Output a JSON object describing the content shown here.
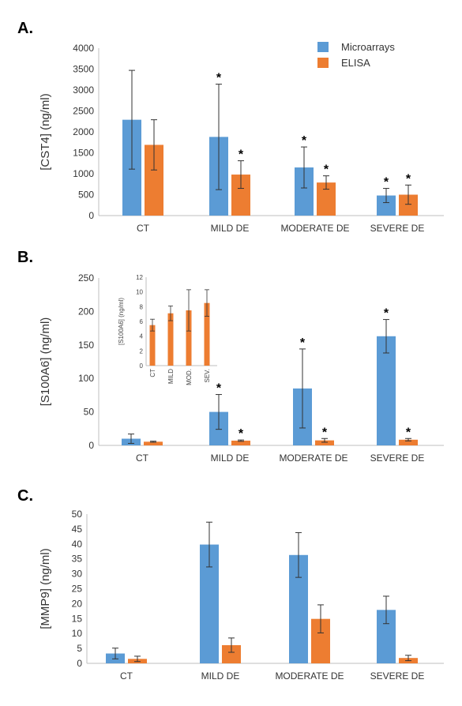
{
  "colors": {
    "microarrays": "#5b9bd5",
    "elisa": "#ed7d31"
  },
  "legend": {
    "microarrays": "Microarrays",
    "elisa": "ELISA"
  },
  "chart_data": [
    {
      "type": "bar",
      "panel": "A.",
      "ylabel": "[CST4] (ng/ml)",
      "ylim": [
        0,
        4000
      ],
      "yticks": [
        0,
        500,
        1000,
        1500,
        2000,
        2500,
        3000,
        3500,
        4000
      ],
      "categories": [
        "CT",
        "MILD DE",
        "MODERATE DE",
        "SEVERE DE"
      ],
      "series": [
        {
          "name": "Microarrays",
          "values": [
            2290,
            1880,
            1150,
            480
          ],
          "errors": [
            1180,
            1260,
            490,
            170
          ],
          "significant": [
            false,
            true,
            true,
            true
          ]
        },
        {
          "name": "ELISA",
          "values": [
            1690,
            980,
            790,
            500
          ],
          "errors": [
            600,
            330,
            160,
            230
          ],
          "significant": [
            false,
            true,
            true,
            true
          ]
        }
      ]
    },
    {
      "type": "bar",
      "panel": "B.",
      "ylabel": "[S100A6] (ng/ml)",
      "ylim": [
        0,
        250
      ],
      "yticks": [
        0,
        50,
        100,
        150,
        200,
        250
      ],
      "categories": [
        "CT",
        "MILD DE",
        "MODERATE DE",
        "SEVERE DE"
      ],
      "series": [
        {
          "name": "Microarrays",
          "values": [
            10,
            50,
            85,
            163
          ],
          "errors": [
            7,
            26,
            59,
            25
          ],
          "significant": [
            false,
            true,
            true,
            true
          ]
        },
        {
          "name": "ELISA",
          "values": [
            5.5,
            7.1,
            7.5,
            8.5
          ],
          "errors": [
            0.8,
            1.0,
            2.8,
            1.8
          ],
          "significant": [
            false,
            true,
            true,
            true
          ]
        }
      ],
      "inset": {
        "ylabel": "[S100A6] (ng/ml)",
        "ylim": [
          0,
          12
        ],
        "yticks": [
          0,
          2,
          4,
          6,
          8,
          10,
          12
        ],
        "categories": [
          "CT",
          "MILD",
          "MOD.",
          "SEV."
        ],
        "values": [
          5.5,
          7.1,
          7.5,
          8.5
        ],
        "errors": [
          0.8,
          1.0,
          2.8,
          1.8
        ]
      }
    },
    {
      "type": "bar",
      "panel": "C.",
      "ylabel": "[MMP9] (ng/ml)",
      "ylim": [
        0,
        50
      ],
      "yticks": [
        0,
        5,
        10,
        15,
        20,
        25,
        30,
        35,
        40,
        45,
        50
      ],
      "categories": [
        "CT",
        "MILD DE",
        "MODERATE DE",
        "SEVERE DE"
      ],
      "series": [
        {
          "name": "Microarrays",
          "values": [
            3.3,
            39.8,
            36.3,
            17.9
          ],
          "errors": [
            1.8,
            7.5,
            7.5,
            4.6
          ],
          "significant": [
            false,
            false,
            false,
            false
          ]
        },
        {
          "name": "ELISA",
          "values": [
            1.5,
            6.1,
            14.9,
            1.8
          ],
          "errors": [
            0.9,
            2.4,
            4.7,
            0.9
          ],
          "significant": [
            false,
            false,
            false,
            false
          ]
        }
      ]
    }
  ]
}
